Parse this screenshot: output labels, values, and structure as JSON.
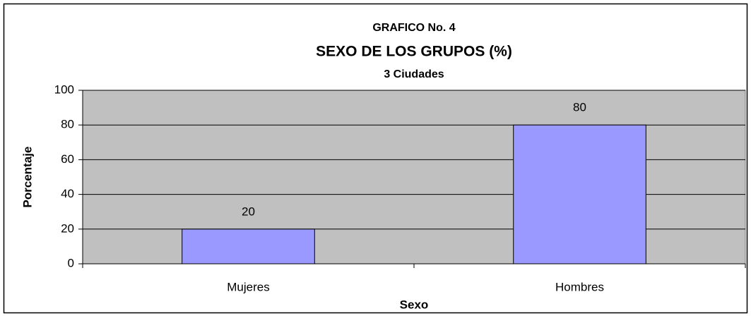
{
  "chart_data": {
    "type": "bar",
    "chart_number": "GRAFICO No. 4",
    "title": "SEXO DE LOS GRUPOS (%)",
    "subtitle": "3 Ciudades",
    "x_label": "Sexo",
    "y_label": "Porcentaje",
    "categories": [
      "Mujeres",
      "Hombres"
    ],
    "values": [
      20,
      80
    ],
    "color": "#9999ff",
    "ylim": [
      0,
      100
    ],
    "yticks": [
      0,
      20,
      40,
      60,
      80,
      100
    ],
    "grid": true
  }
}
